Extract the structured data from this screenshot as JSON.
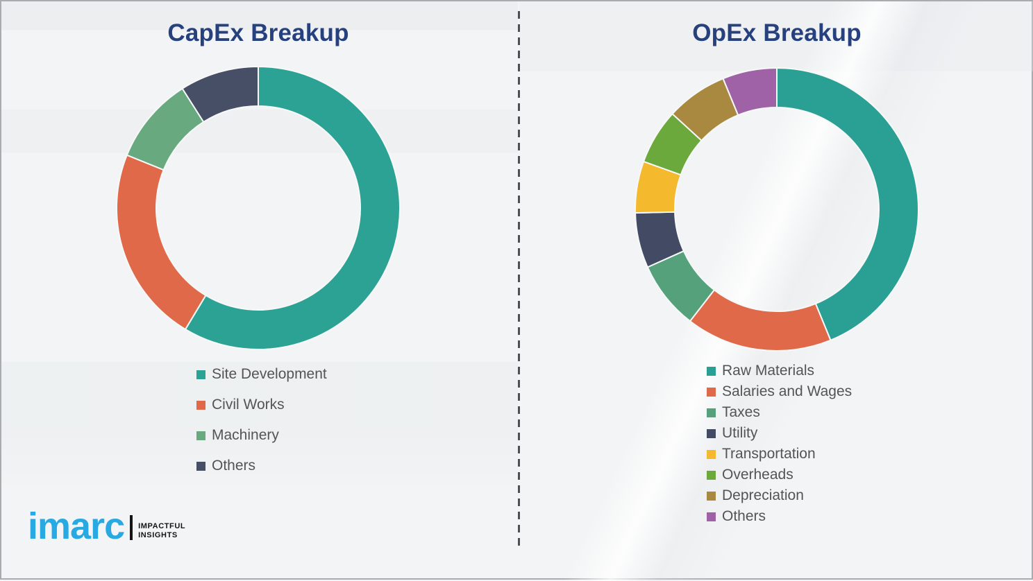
{
  "colors": {
    "title_text": "#27417E",
    "legend_text": "#545454",
    "divider": "#4d4f52",
    "background": "#f3f4f5",
    "segment_gap": "#f7f8f8",
    "logo_blue": "#29A9E2",
    "logo_dark": "#141414"
  },
  "branding": {
    "logo_text": "imarc",
    "tagline_line1": "IMPACTFUL",
    "tagline_line2": "INSIGHTS"
  },
  "chart_data": [
    {
      "type": "donut",
      "title": "CapEx Breakup",
      "start_angle_deg": 0,
      "direction": "clockwise",
      "inner_radius_ratio": 0.72,
      "units": "percent",
      "legend_position": "below-left",
      "segments": [
        {
          "label": "Site Development",
          "value": 58.6,
          "color": "#2BA293"
        },
        {
          "label": "Civil Works",
          "value": 22.5,
          "color": "#E0694A"
        },
        {
          "label": "Machinery",
          "value": 9.9,
          "color": "#68A97F"
        },
        {
          "label": "Others",
          "value": 9.0,
          "color": "#474F66"
        }
      ]
    },
    {
      "type": "donut",
      "title": "OpEx Breakup",
      "start_angle_deg": 0,
      "direction": "clockwise",
      "inner_radius_ratio": 0.72,
      "units": "percent",
      "legend_position": "below-left",
      "segments": [
        {
          "label": "Raw Materials",
          "value": 43.8,
          "color": "#29A093"
        },
        {
          "label": "Salaries and Wages",
          "value": 16.7,
          "color": "#E0694A"
        },
        {
          "label": "Taxes",
          "value": 7.8,
          "color": "#54A17C"
        },
        {
          "label": "Utility",
          "value": 6.3,
          "color": "#434B64"
        },
        {
          "label": "Transportation",
          "value": 5.9,
          "color": "#F5B92D"
        },
        {
          "label": "Overheads",
          "value": 6.3,
          "color": "#6CA93C"
        },
        {
          "label": "Depreciation",
          "value": 7.0,
          "color": "#A8893F"
        },
        {
          "label": "Others",
          "value": 6.2,
          "color": "#9F62A6"
        }
      ]
    }
  ]
}
